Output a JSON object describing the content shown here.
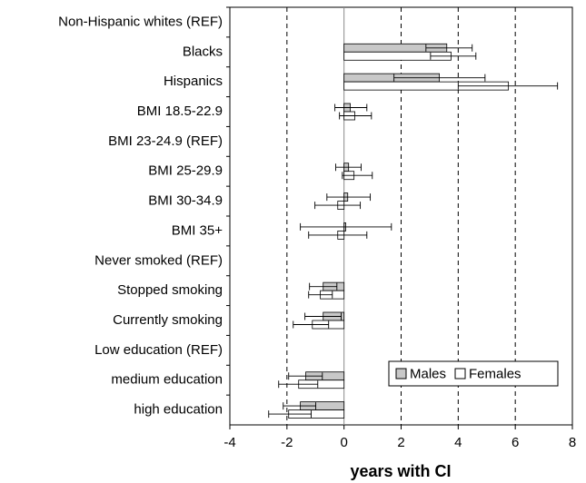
{
  "chart_data": {
    "type": "hbar_ci",
    "xlabel": "years with CI",
    "categories": [
      "Non-Hispanic whites (REF)",
      "Blacks",
      "Hispanics",
      "BMI 18.5-22.9",
      "BMI 23-24.9 (REF)",
      "BMI 25-29.9",
      "BMI 30-34.9",
      "BMI 35+",
      "Never smoked (REF)",
      "Stopped smoking",
      "Currently smoking",
      "Low education (REF)",
      "medium education",
      "high education"
    ],
    "series": [
      {
        "name": "Males",
        "color": "#c8c8c8",
        "values": [
          null,
          3.6,
          3.34,
          0.22,
          null,
          0.16,
          0.13,
          0.06,
          null,
          -0.73,
          -0.73,
          null,
          -1.34,
          -1.53
        ],
        "ci_low": [
          null,
          2.87,
          1.75,
          -0.32,
          null,
          -0.29,
          -0.6,
          -1.53,
          null,
          -1.21,
          -1.37,
          null,
          -1.94,
          -2.13
        ],
        "ci_high": [
          null,
          4.49,
          4.94,
          0.8,
          null,
          0.6,
          0.92,
          1.66,
          null,
          -0.25,
          -0.1,
          null,
          -0.76,
          -0.99
        ]
      },
      {
        "name": "Females",
        "color": "#ffffff",
        "values": [
          null,
          3.75,
          5.76,
          0.38,
          null,
          0.35,
          -0.22,
          -0.22,
          null,
          -0.83,
          -1.11,
          null,
          -1.59,
          -1.94
        ],
        "ci_low": [
          null,
          3.03,
          4.0,
          -0.16,
          null,
          -0.06,
          -1.02,
          -1.24,
          null,
          -1.24,
          -1.78,
          null,
          -2.29,
          -2.64
        ],
        "ci_high": [
          null,
          4.62,
          7.48,
          0.96,
          null,
          0.99,
          0.57,
          0.8,
          null,
          -0.41,
          -0.54,
          null,
          -0.92,
          -1.15
        ]
      }
    ],
    "xlim": [
      -4,
      8
    ],
    "xticks": [
      -4,
      -2,
      0,
      2,
      4,
      6,
      8
    ],
    "grid": true,
    "legend": "lower right"
  }
}
